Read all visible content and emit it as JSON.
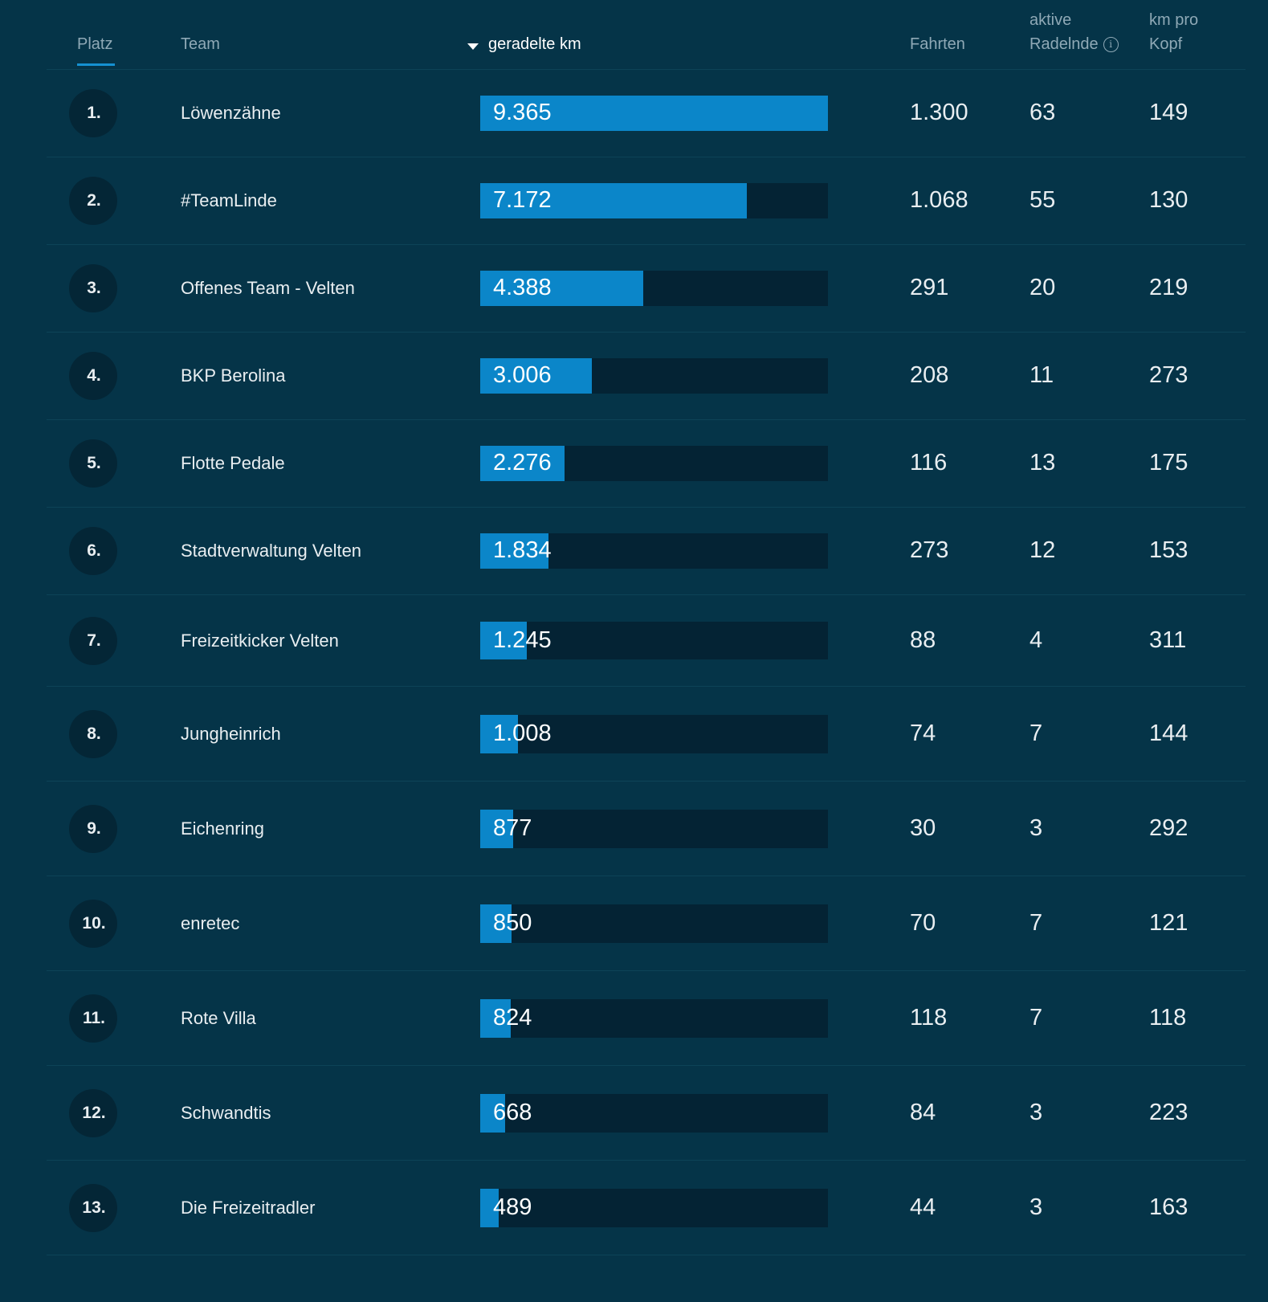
{
  "headers": {
    "platz": "Platz",
    "team": "Team",
    "km": "geradelte km",
    "fahrten": "Fahrten",
    "aktive_line1": "aktive",
    "aktive_line2": "Radelnde",
    "kopf_line1": "km pro",
    "kopf_line2": "Kopf"
  },
  "max_km": 9365,
  "rows": [
    {
      "rank": "1.",
      "team": "Löwenzähne",
      "km": 9365,
      "km_label": "9.365",
      "fahrten": "1.300",
      "aktive": "63",
      "kopf": "149"
    },
    {
      "rank": "2.",
      "team": "#TeamLinde",
      "km": 7172,
      "km_label": "7.172",
      "fahrten": "1.068",
      "aktive": "55",
      "kopf": "130"
    },
    {
      "rank": "3.",
      "team": "Offenes Team - Velten",
      "km": 4388,
      "km_label": "4.388",
      "fahrten": "291",
      "aktive": "20",
      "kopf": "219"
    },
    {
      "rank": "4.",
      "team": "BKP Berolina",
      "km": 3006,
      "km_label": "3.006",
      "fahrten": "208",
      "aktive": "11",
      "kopf": "273"
    },
    {
      "rank": "5.",
      "team": "Flotte Pedale",
      "km": 2276,
      "km_label": "2.276",
      "fahrten": "116",
      "aktive": "13",
      "kopf": "175"
    },
    {
      "rank": "6.",
      "team": "Stadtverwaltung Velten",
      "km": 1834,
      "km_label": "1.834",
      "fahrten": "273",
      "aktive": "12",
      "kopf": "153"
    },
    {
      "rank": "7.",
      "team": "Freizeitkicker Velten",
      "km": 1245,
      "km_label": "1.245",
      "fahrten": "88",
      "aktive": "4",
      "kopf": "311"
    },
    {
      "rank": "8.",
      "team": "Jungheinrich",
      "km": 1008,
      "km_label": "1.008",
      "fahrten": "74",
      "aktive": "7",
      "kopf": "144"
    },
    {
      "rank": "9.",
      "team": "Eichenring",
      "km": 877,
      "km_label": "877",
      "fahrten": "30",
      "aktive": "3",
      "kopf": "292"
    },
    {
      "rank": "10.",
      "team": "enretec",
      "km": 850,
      "km_label": "850",
      "fahrten": "70",
      "aktive": "7",
      "kopf": "121"
    },
    {
      "rank": "11.",
      "team": "Rote Villa",
      "km": 824,
      "km_label": "824",
      "fahrten": "118",
      "aktive": "7",
      "kopf": "118"
    },
    {
      "rank": "12.",
      "team": "Schwandtis",
      "km": 668,
      "km_label": "668",
      "fahrten": "84",
      "aktive": "3",
      "kopf": "223"
    },
    {
      "rank": "13.",
      "team": "Die Freizeitradler",
      "km": 489,
      "km_label": "489",
      "fahrten": "44",
      "aktive": "3",
      "kopf": "163"
    }
  ],
  "colors": {
    "background": "#053448",
    "bar_fill": "#0b86c9",
    "bar_track": "#042334",
    "sort_underline": "#1591d1"
  }
}
